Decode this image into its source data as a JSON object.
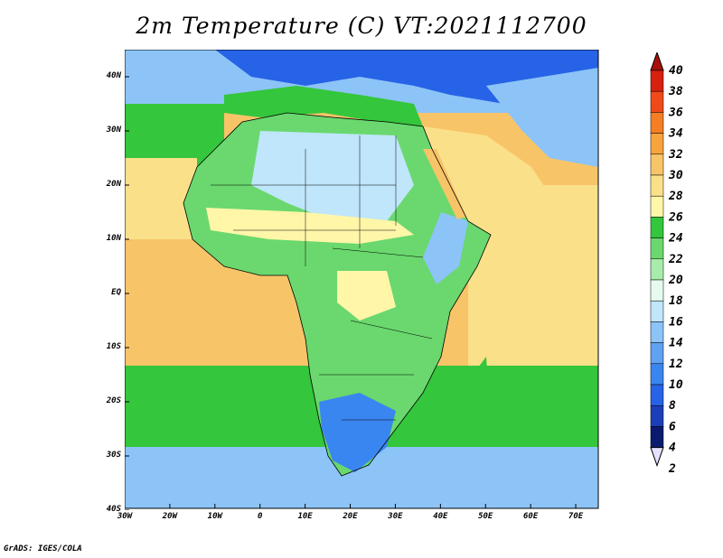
{
  "title": "2m Temperature (C) VT:2021112700",
  "footer": "GrADS: IGES/COLA",
  "x_axis_labels": [
    "30W",
    "20W",
    "10W",
    "0",
    "10E",
    "20E",
    "30E",
    "40E",
    "50E",
    "60E",
    "70E"
  ],
  "y_axis_labels": [
    "40N",
    "30N",
    "20N",
    "10N",
    "EQ",
    "10S",
    "20S",
    "30S",
    "40S"
  ],
  "colorbar": {
    "labels": [
      "2",
      "4",
      "6",
      "8",
      "10",
      "12",
      "14",
      "16",
      "18",
      "20",
      "22",
      "24",
      "26",
      "28",
      "30",
      "32",
      "34",
      "36",
      "38",
      "40"
    ],
    "colors": [
      "#e6e1ff",
      "#0a1a6e",
      "#1c3fb8",
      "#2763e6",
      "#3a86f0",
      "#5fa2f2",
      "#8cc4f7",
      "#bfe6fa",
      "#e6fbef",
      "#a7ecaa",
      "#6ad86e",
      "#34c63c",
      "#fff6a8",
      "#fbe08a",
      "#f8c468",
      "#f7a43c",
      "#f57e25",
      "#f04a1a",
      "#d8200e",
      "#a8110a"
    ]
  },
  "map_colors": {
    "land": "#6ad86e",
    "ocean_warm": "#f8c468",
    "ocean_mild": "#fbe08a",
    "ocean_cool": "#34c63c",
    "ocean_cold": "#8cc4f7",
    "desert_cool": "#bfe6fa",
    "mountain": "#2763e6",
    "sahel": "#fff6a8",
    "south_cold": "#3a86f0"
  }
}
